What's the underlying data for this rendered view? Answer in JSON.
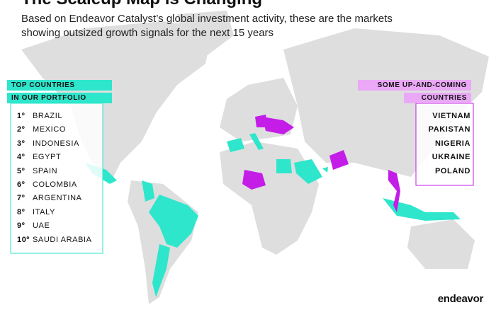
{
  "header": {
    "title": "The Scaleup Map is Changing",
    "subtitle_lines": [
      "Based on Endeavor Catalyst’s global investment activity, these are the markets",
      "showing outsized growth signals for the next 15 years"
    ]
  },
  "top_countries": {
    "heading": [
      "TOP COUNTRIES",
      "IN OUR PORTFOLIO"
    ],
    "items": [
      {
        "rank": "1º",
        "name": "BRAZIL"
      },
      {
        "rank": "2º",
        "name": "MEXICO"
      },
      {
        "rank": "3º",
        "name": "INDONESIA"
      },
      {
        "rank": "4º",
        "name": "EGYPT"
      },
      {
        "rank": "5º",
        "name": "SPAIN"
      },
      {
        "rank": "6º",
        "name": "COLOMBIA"
      },
      {
        "rank": "7º",
        "name": "ARGENTINA"
      },
      {
        "rank": "8º",
        "name": "ITALY"
      },
      {
        "rank": "9º",
        "name": "UAE"
      },
      {
        "rank": "10º",
        "name": "SAUDI ARABIA"
      }
    ]
  },
  "emerging": {
    "heading": [
      "SOME UP-AND-COMING",
      "COUNTRIES"
    ],
    "items": [
      "VIETNAM",
      "PAKISTAN",
      "NIGERIA",
      "UKRAINE",
      "POLAND"
    ]
  },
  "logo": "endeavor"
}
